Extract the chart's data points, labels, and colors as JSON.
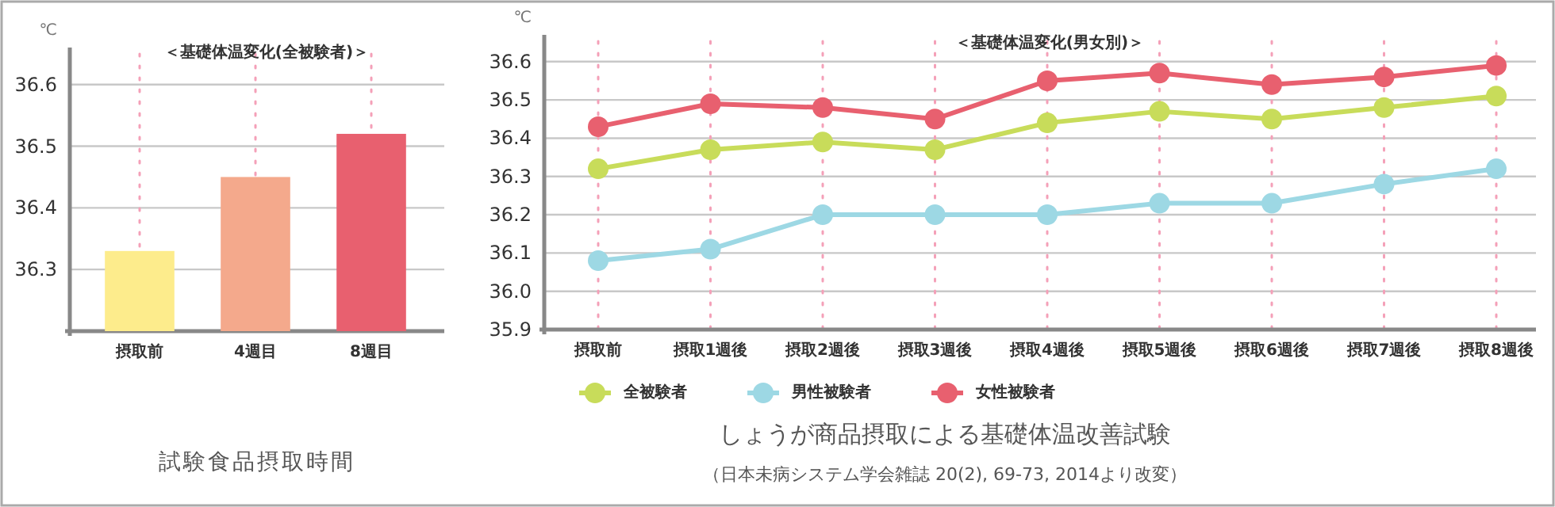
{
  "chart_data": [
    {
      "type": "bar",
      "title": "＜基礎体温変化(全被験者)＞",
      "ylabel": "℃",
      "xlabel": "試験食品摂取時間",
      "categories": [
        "摂取前",
        "4週目",
        "8週目"
      ],
      "values": [
        36.33,
        36.45,
        36.52
      ],
      "colors": [
        "#fdec8c",
        "#f4a98c",
        "#e8606f"
      ],
      "ylim": [
        36.2,
        36.66
      ],
      "yticks": [
        36.3,
        36.4,
        36.5,
        36.6
      ],
      "grid": true
    },
    {
      "type": "line",
      "title": "＜基礎体温変化(男女別)＞",
      "ylabel": "℃",
      "subtitle": "しょうが商品摂取による基礎体温改善試験",
      "annotations": [
        "（日本未病システム学会雑誌 20(2), 69-73, 2014より改変）"
      ],
      "categories": [
        "摂取前",
        "摂取1週後",
        "摂取2週後",
        "摂取3週後",
        "摂取4週後",
        "摂取5週後",
        "摂取6週後",
        "摂取7週後",
        "摂取8週後"
      ],
      "series": [
        {
          "name": "全被験者",
          "color": "#c8dc5a",
          "values": [
            36.32,
            36.37,
            36.39,
            36.37,
            36.44,
            36.47,
            36.45,
            36.48,
            36.51
          ]
        },
        {
          "name": "男性被験者",
          "color": "#9dd8e4",
          "values": [
            36.08,
            36.11,
            36.2,
            36.2,
            36.2,
            36.23,
            36.23,
            36.28,
            36.32
          ]
        },
        {
          "name": "女性被験者",
          "color": "#e8606f",
          "values": [
            36.43,
            36.49,
            36.48,
            36.45,
            36.55,
            36.57,
            36.54,
            36.56,
            36.59
          ]
        }
      ],
      "ylim": [
        35.9,
        36.67
      ],
      "yticks": [
        35.9,
        {
          "value": 36,
          "label": "36.0"
        },
        36.1,
        36.2,
        36.3,
        36.4,
        36.5,
        36.6
      ],
      "grid": true,
      "legend": "bottom left",
      "marker": "circle",
      "line_style": "solid"
    }
  ]
}
